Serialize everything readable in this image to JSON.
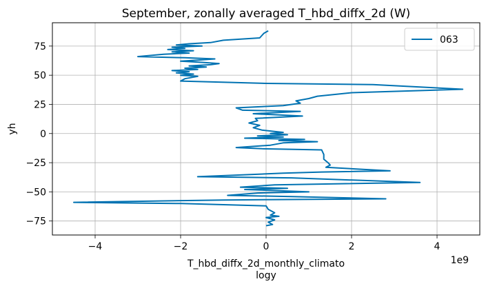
{
  "chart_data": {
    "type": "line",
    "title": "September, zonally averaged T_hbd_diffx_2d (W)",
    "xlabel_line1": "T_hbd_diffx_2d_monthly_climato",
    "xlabel_line2": "logy",
    "ylabel": "yh",
    "x_offset_text": "1e9",
    "x_scale": 1000000000,
    "xlim": [
      -5.0,
      5.0
    ],
    "ylim": [
      -87,
      95
    ],
    "x_ticks": [
      -4,
      -2,
      0,
      2,
      4
    ],
    "x_tick_labels": [
      "−4",
      "−2",
      "0",
      "2",
      "4"
    ],
    "y_ticks": [
      -75,
      -50,
      -25,
      0,
      25,
      50,
      75
    ],
    "y_tick_labels": [
      "−75",
      "−50",
      "−25",
      "0",
      "25",
      "50",
      "75"
    ],
    "grid": true,
    "legend_position": "top-right",
    "series": [
      {
        "name": "063",
        "color": "#0072B2",
        "points": [
          [
            0.05,
            88
          ],
          [
            -0.05,
            86
          ],
          [
            -0.15,
            82
          ],
          [
            -1.0,
            80
          ],
          [
            -1.3,
            78
          ],
          [
            -1.8,
            77
          ],
          [
            -2.1,
            76
          ],
          [
            -1.5,
            75
          ],
          [
            -2.2,
            74
          ],
          [
            -1.9,
            73
          ],
          [
            -2.3,
            72
          ],
          [
            -1.7,
            71
          ],
          [
            -2.2,
            70
          ],
          [
            -1.8,
            69
          ],
          [
            -2.4,
            68
          ],
          [
            -3.0,
            66
          ],
          [
            -1.9,
            65
          ],
          [
            -1.2,
            64
          ],
          [
            -1.6,
            63
          ],
          [
            -2.0,
            62
          ],
          [
            -1.5,
            61
          ],
          [
            -1.1,
            60
          ],
          [
            -1.3,
            59
          ],
          [
            -1.8,
            58
          ],
          [
            -1.4,
            57
          ],
          [
            -1.9,
            56
          ],
          [
            -1.6,
            55
          ],
          [
            -2.2,
            54
          ],
          [
            -1.8,
            53
          ],
          [
            -2.1,
            52
          ],
          [
            -1.7,
            51
          ],
          [
            -2.0,
            50
          ],
          [
            -1.6,
            49
          ],
          [
            -1.9,
            47
          ],
          [
            -2.0,
            45
          ],
          [
            0.0,
            43
          ],
          [
            2.5,
            42
          ],
          [
            4.6,
            38
          ],
          [
            2.0,
            35
          ],
          [
            1.2,
            32
          ],
          [
            1.0,
            30
          ],
          [
            0.7,
            28
          ],
          [
            0.8,
            26
          ],
          [
            0.4,
            24
          ],
          [
            -0.7,
            22
          ],
          [
            -0.55,
            20
          ],
          [
            0.8,
            19
          ],
          [
            -0.3,
            17
          ],
          [
            0.85,
            15
          ],
          [
            -0.25,
            13
          ],
          [
            -0.2,
            11
          ],
          [
            -0.4,
            9
          ],
          [
            -0.15,
            7
          ],
          [
            -0.3,
            5
          ],
          [
            -0.1,
            3
          ],
          [
            0.4,
            1
          ],
          [
            0.1,
            0
          ],
          [
            0.5,
            -1
          ],
          [
            -0.2,
            -2
          ],
          [
            0.4,
            -3
          ],
          [
            -0.5,
            -4
          ],
          [
            0.9,
            -5
          ],
          [
            0.3,
            -6
          ],
          [
            1.2,
            -7
          ],
          [
            0.4,
            -8
          ],
          [
            0.1,
            -10
          ],
          [
            -0.7,
            -12
          ],
          [
            -0.1,
            -13
          ],
          [
            1.3,
            -14
          ],
          [
            1.35,
            -18
          ],
          [
            1.35,
            -22
          ],
          [
            1.45,
            -25
          ],
          [
            1.5,
            -27
          ],
          [
            1.4,
            -29
          ],
          [
            2.9,
            -32
          ],
          [
            1.3,
            -33
          ],
          [
            0.4,
            -34
          ],
          [
            -1.6,
            -37
          ],
          [
            0.6,
            -38
          ],
          [
            3.6,
            -42
          ],
          [
            0.2,
            -44
          ],
          [
            -0.6,
            -46
          ],
          [
            0.5,
            -47
          ],
          [
            -0.5,
            -48
          ],
          [
            0.3,
            -49
          ],
          [
            1.0,
            -50
          ],
          [
            -0.2,
            -51
          ],
          [
            -0.9,
            -53
          ],
          [
            0.6,
            -54
          ],
          [
            2.8,
            -56
          ],
          [
            -1.0,
            -57
          ],
          [
            -4.5,
            -59
          ],
          [
            -2.0,
            -60
          ],
          [
            0.0,
            -62
          ],
          [
            0.05,
            -65
          ],
          [
            0.2,
            -68
          ],
          [
            0.1,
            -70
          ],
          [
            0.3,
            -71
          ],
          [
            0.0,
            -72
          ],
          [
            0.2,
            -74
          ],
          [
            0.05,
            -76
          ],
          [
            0.15,
            -78
          ],
          [
            0.0,
            -79
          ]
        ]
      }
    ]
  }
}
